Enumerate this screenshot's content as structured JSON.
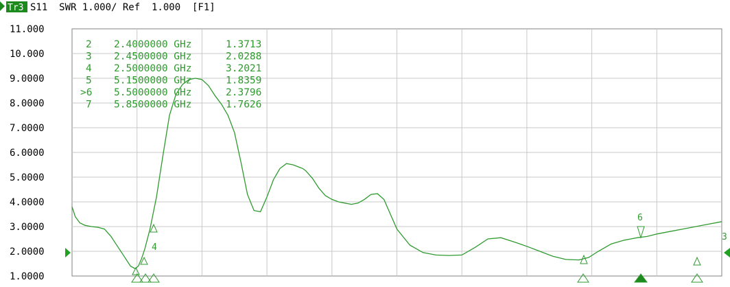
{
  "header": {
    "trace_badge": "Tr3",
    "text": "S11  SWR 1.000/ Ref  1.000  [F1]"
  },
  "chart_data": {
    "type": "line",
    "title": "S11 SWR 1.000/ Ref 1.000 [F1]",
    "ylim": [
      1.0,
      11.0
    ],
    "y_ticks": [
      "11.000",
      "10.000",
      "9.0000",
      "8.0000",
      "7.0000",
      "6.0000",
      "5.0000",
      "4.0000",
      "3.0000",
      "2.0000",
      "1.0000"
    ],
    "xlim": [
      0,
      10
    ],
    "grid": true,
    "series": [
      {
        "color": "#2e9a2e",
        "x": [
          0,
          0.05,
          0.12,
          0.2,
          0.3,
          0.4,
          0.5,
          0.6,
          0.7,
          0.8,
          0.9,
          0.97,
          1.02,
          1.07,
          1.12,
          1.2,
          1.3,
          1.4,
          1.5,
          1.6,
          1.7,
          1.8,
          1.9,
          2.0,
          2.1,
          2.2,
          2.3,
          2.4,
          2.5,
          2.6,
          2.7,
          2.8,
          2.9,
          3.0,
          3.1,
          3.2,
          3.3,
          3.4,
          3.5,
          3.55,
          3.6,
          3.7,
          3.8,
          3.9,
          4.0,
          4.1,
          4.2,
          4.3,
          4.4,
          4.5,
          4.6,
          4.7,
          4.8,
          4.9,
          5.0,
          5.2,
          5.4,
          5.6,
          5.8,
          6.0,
          6.2,
          6.4,
          6.6,
          6.8,
          7.0,
          7.2,
          7.4,
          7.6,
          7.8,
          7.95,
          8.1,
          8.3,
          8.5,
          8.6,
          8.7,
          8.85,
          9.0,
          9.2,
          9.4,
          9.6,
          9.8,
          10.0
        ],
        "values": [
          3.8,
          3.4,
          3.15,
          3.05,
          3.0,
          2.97,
          2.9,
          2.6,
          2.2,
          1.8,
          1.4,
          1.3,
          1.4,
          1.7,
          2.1,
          2.9,
          4.2,
          5.9,
          7.5,
          8.35,
          8.75,
          8.95,
          9.0,
          8.95,
          8.7,
          8.3,
          7.95,
          7.5,
          6.8,
          5.6,
          4.3,
          3.65,
          3.6,
          4.2,
          4.9,
          5.35,
          5.55,
          5.5,
          5.4,
          5.35,
          5.25,
          4.95,
          4.55,
          4.25,
          4.1,
          4.0,
          3.95,
          3.9,
          3.95,
          4.1,
          4.3,
          4.33,
          4.1,
          3.5,
          2.9,
          2.25,
          1.95,
          1.85,
          1.83,
          1.85,
          2.15,
          2.5,
          2.55,
          2.38,
          2.2,
          2.0,
          1.8,
          1.67,
          1.65,
          1.75,
          2.0,
          2.3,
          2.45,
          2.5,
          2.55,
          2.6,
          2.7,
          2.8,
          2.9,
          3.0,
          3.1,
          3.2
        ]
      }
    ],
    "markers_table": [
      {
        "id": "2",
        "freq": "2.4000000 GHz",
        "value": "1.3713"
      },
      {
        "id": "3",
        "freq": "2.4500000 GHz",
        "value": "2.0288"
      },
      {
        "id": "4",
        "freq": "2.5000000 GHz",
        "value": "3.2021"
      },
      {
        "id": "5",
        "freq": "5.1500000 GHz",
        "value": "1.8359"
      },
      {
        "id": ">6",
        "freq": "5.5000000 GHz",
        "value": "2.3796"
      },
      {
        "id": "7",
        "freq": "5.8500000 GHz",
        "value": "1.7626"
      }
    ],
    "trace_markers": [
      {
        "label": "4",
        "x": 1.1,
        "y": 3.2
      },
      {
        "label": "3",
        "x": 10.0,
        "y": 2.35
      },
      {
        "label": "6",
        "x": 8.8,
        "y": 2.38
      }
    ]
  },
  "colors": {
    "trace": "#2e9a2e",
    "grid": "#c8c8c8",
    "frame": "#808080",
    "badge_bg": "#1c8a1c"
  }
}
